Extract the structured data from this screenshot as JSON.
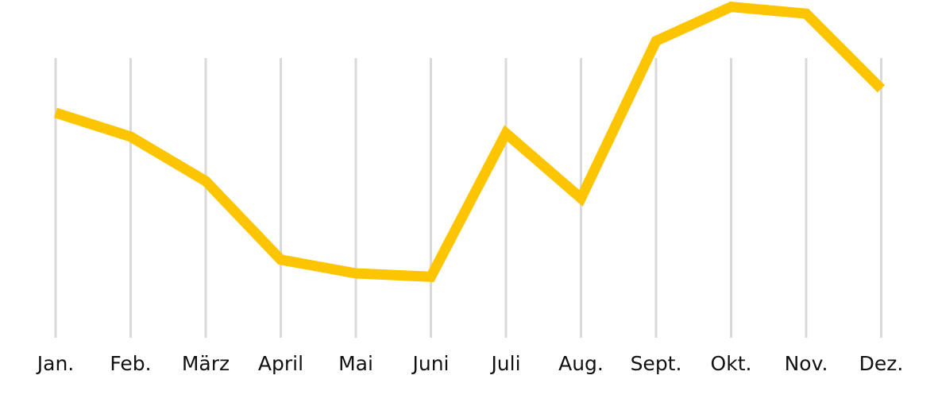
{
  "chart_data": {
    "type": "line",
    "categories": [
      "Jan.",
      "Feb.",
      "März",
      "April",
      "Mai",
      "Juni",
      "Juli",
      "Aug.",
      "Sept.",
      "Okt.",
      "Nov.",
      "Dez."
    ],
    "values": [
      67,
      60,
      47,
      24,
      20,
      19,
      61,
      42,
      88,
      98,
      96,
      74
    ],
    "color": "#fcc500",
    "ylim": [
      0,
      100
    ],
    "grid": true
  }
}
